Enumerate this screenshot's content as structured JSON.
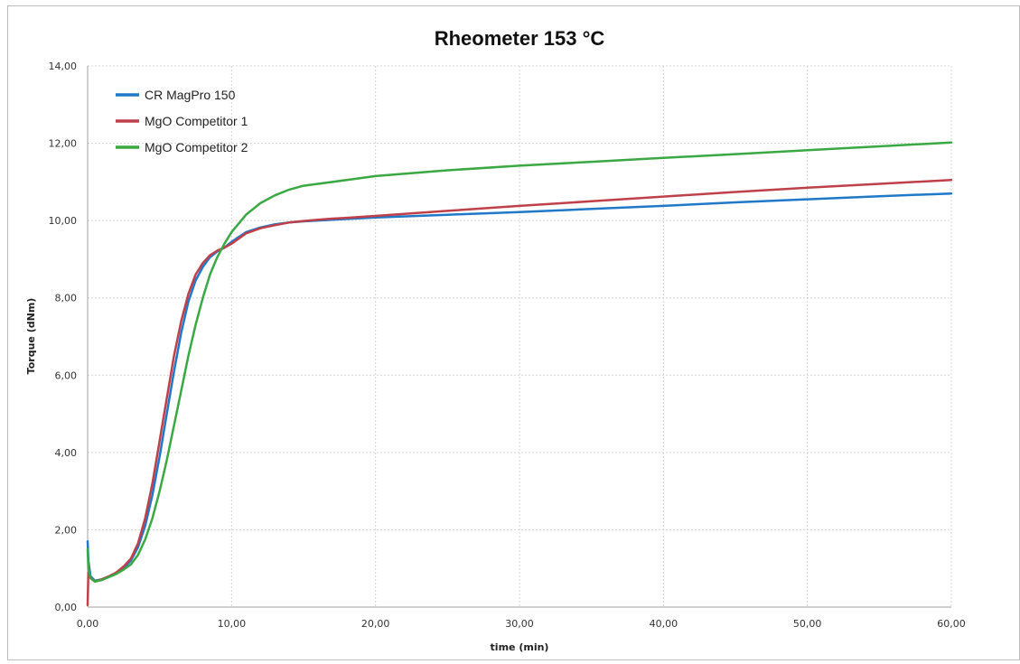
{
  "chart_data": {
    "type": "line",
    "title": "Rheometer 153 °C",
    "xlabel": "time (min)",
    "ylabel": "Torque (dNm)",
    "xlim": [
      0,
      60
    ],
    "ylim": [
      0,
      14
    ],
    "x_ticks": [
      0,
      10,
      20,
      30,
      40,
      50,
      60
    ],
    "y_ticks": [
      0,
      2,
      4,
      6,
      8,
      10,
      12,
      14
    ],
    "x_tick_labels": [
      "0,00",
      "10,00",
      "20,00",
      "30,00",
      "40,00",
      "50,00",
      "60,00"
    ],
    "y_tick_labels": [
      "0,00",
      "2,00",
      "4,00",
      "6,00",
      "8,00",
      "10,00",
      "12,00",
      "14,00"
    ],
    "grid": true,
    "legend_position": "top-left",
    "series": [
      {
        "name": "CR MagPro 150",
        "color": "#1f78c8",
        "x": [
          0,
          0.05,
          0.2,
          0.5,
          1,
          1.5,
          2,
          2.5,
          3,
          3.5,
          4,
          4.5,
          5,
          5.5,
          6,
          6.5,
          7,
          7.5,
          8,
          8.5,
          9,
          9.5,
          10,
          11,
          12,
          13,
          14,
          15,
          16,
          17,
          18,
          20,
          25,
          30,
          35,
          40,
          45,
          50,
          55,
          60
        ],
        "y": [
          1.7,
          1.2,
          0.8,
          0.68,
          0.72,
          0.8,
          0.88,
          1.0,
          1.2,
          1.55,
          2.1,
          2.9,
          3.9,
          5.0,
          6.1,
          7.1,
          7.9,
          8.45,
          8.8,
          9.05,
          9.2,
          9.3,
          9.45,
          9.7,
          9.82,
          9.9,
          9.95,
          9.98,
          10.0,
          10.02,
          10.04,
          10.08,
          10.15,
          10.22,
          10.3,
          10.38,
          10.47,
          10.55,
          10.63,
          10.7
        ]
      },
      {
        "name": "MgO Competitor 1",
        "color": "#c0404a",
        "x": [
          0,
          0.05,
          0.2,
          0.5,
          1,
          1.5,
          2,
          2.5,
          3,
          3.5,
          4,
          4.5,
          5,
          5.5,
          6,
          6.5,
          7,
          7.5,
          8,
          8.5,
          9,
          9.5,
          10,
          11,
          12,
          13,
          14,
          15,
          16,
          17,
          18,
          20,
          25,
          30,
          35,
          40,
          45,
          50,
          55,
          60
        ],
        "y": [
          0.05,
          0.9,
          0.75,
          0.66,
          0.72,
          0.8,
          0.9,
          1.05,
          1.25,
          1.65,
          2.3,
          3.2,
          4.3,
          5.4,
          6.5,
          7.4,
          8.1,
          8.6,
          8.9,
          9.1,
          9.22,
          9.3,
          9.4,
          9.67,
          9.8,
          9.88,
          9.95,
          9.99,
          10.02,
          10.05,
          10.07,
          10.12,
          10.25,
          10.38,
          10.5,
          10.62,
          10.74,
          10.85,
          10.95,
          11.05
        ]
      },
      {
        "name": "MgO Competitor 2",
        "color": "#3aa843",
        "x": [
          0,
          0.05,
          0.2,
          0.5,
          1,
          1.5,
          2,
          2.5,
          3,
          3.5,
          4,
          4.5,
          5,
          5.5,
          6,
          6.5,
          7,
          7.5,
          8,
          8.5,
          9,
          9.5,
          10,
          11,
          12,
          13,
          14,
          15,
          16,
          17,
          18,
          20,
          25,
          30,
          35,
          40,
          45,
          50,
          55,
          60
        ],
        "y": [
          1.5,
          1.0,
          0.75,
          0.66,
          0.7,
          0.78,
          0.86,
          0.97,
          1.1,
          1.35,
          1.75,
          2.3,
          3.0,
          3.8,
          4.7,
          5.6,
          6.5,
          7.3,
          8.0,
          8.6,
          9.05,
          9.4,
          9.7,
          10.15,
          10.45,
          10.65,
          10.8,
          10.9,
          10.95,
          11.0,
          11.05,
          11.15,
          11.3,
          11.42,
          11.52,
          11.62,
          11.72,
          11.82,
          11.92,
          12.02
        ]
      }
    ]
  }
}
